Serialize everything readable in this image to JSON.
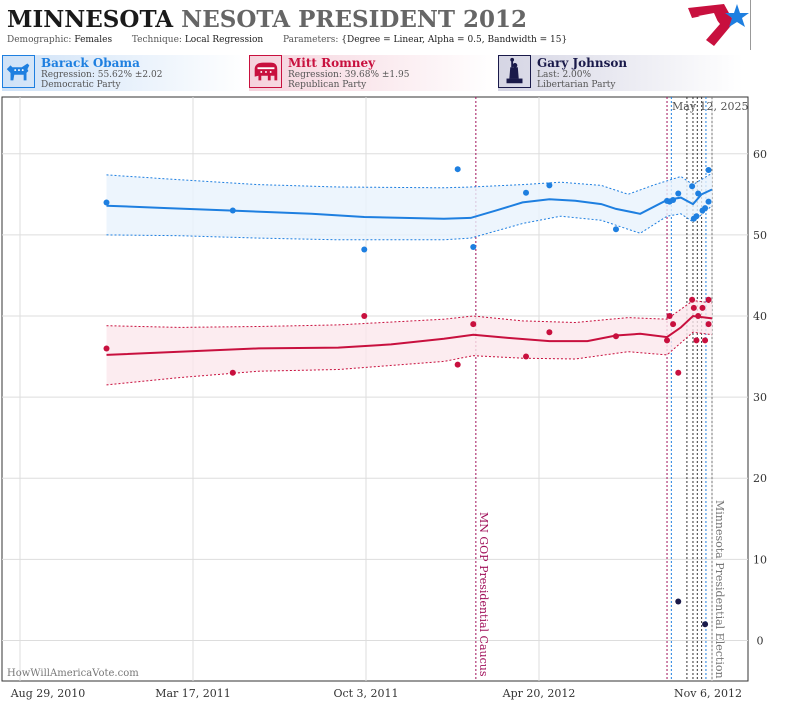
{
  "header": {
    "title_state": "MINNESOTA",
    "title_race": "NESOTA PRESIDENT 2012",
    "demographic_label": "Demographic:",
    "demographic_value": "Females",
    "technique_label": "Technique:",
    "technique_value": "Local Regression",
    "parameters_label": "Parameters:",
    "parameters_value": "{Degree = Linear, Alpha = 0.5, Bandwidth = 15}"
  },
  "candidates": [
    {
      "name": "Barack Obama",
      "stat": "Regression: 55.62% ±2.02",
      "party": "Democratic Party",
      "color": "#1e7fe0",
      "icon": "donkey-icon"
    },
    {
      "name": "Mitt Romney",
      "stat": "Regression: 39.68% ±1.95",
      "party": "Republican Party",
      "color": "#c8103e",
      "icon": "elephant-icon"
    },
    {
      "name": "Gary Johnson",
      "stat": "Last: 2.00%",
      "party": "Libertarian Party",
      "color": "#1a1a4a",
      "icon": "statue-of-liberty-icon"
    }
  ],
  "as_of_date": "May 12, 2025",
  "watermark": "HowWillAmericaVote.com",
  "chart_data": {
    "type": "line",
    "x_tick_labels": [
      "Aug 29, 2010",
      "Mar 17, 2011",
      "Oct 3, 2011",
      "Apr 20, 2012",
      "Nov 6, 2012"
    ],
    "x_tick_dates": [
      "2010-08-29",
      "2011-03-17",
      "2011-10-03",
      "2012-04-20",
      "2012-11-06"
    ],
    "xlim": [
      "2010-08-29",
      "2012-11-06"
    ],
    "ylim": [
      -5,
      67
    ],
    "y_ticks": [
      0,
      10,
      20,
      30,
      40,
      50,
      60
    ],
    "grid": true,
    "events": [
      {
        "date": "2012-02-07",
        "label": "MN GOP Presidential Caucus",
        "color": "#a0105a"
      },
      {
        "date": "2012-11-06",
        "label": "Minnesota Presidential Election",
        "color": "#777777"
      }
    ],
    "poll_markers": [
      {
        "date": "2012-09-15",
        "color": "#a0105a"
      },
      {
        "date": "2012-09-20",
        "color": "#1e7fe0"
      },
      {
        "date": "2012-10-08",
        "color": "#333333"
      },
      {
        "date": "2012-10-15",
        "color": "#333333"
      },
      {
        "date": "2012-10-20",
        "color": "#333333"
      },
      {
        "date": "2012-10-25",
        "color": "#333333"
      },
      {
        "date": "2012-10-30",
        "color": "#1e7fe0"
      }
    ],
    "series": [
      {
        "name": "Barack Obama",
        "color": "#1e7fe0",
        "points": [
          [
            "2010-12-07",
            54
          ],
          [
            "2011-05-02",
            53
          ],
          [
            "2011-10-01",
            48.2
          ],
          [
            "2012-01-17",
            58.1
          ],
          [
            "2012-02-04",
            48.5
          ],
          [
            "2012-04-05",
            55.2
          ],
          [
            "2012-05-02",
            56.1
          ],
          [
            "2012-07-18",
            50.7
          ],
          [
            "2012-09-15",
            54.2
          ],
          [
            "2012-09-18",
            54.1
          ],
          [
            "2012-09-22",
            54.3
          ],
          [
            "2012-09-28",
            55.1
          ],
          [
            "2012-10-14",
            56
          ],
          [
            "2012-10-16",
            52
          ],
          [
            "2012-10-19",
            52.3
          ],
          [
            "2012-10-21",
            55.1
          ],
          [
            "2012-10-26",
            53
          ],
          [
            "2012-10-29",
            53.3
          ],
          [
            "2012-11-02",
            54.1
          ],
          [
            "2012-11-02",
            58
          ]
        ],
        "trend": [
          [
            "2010-12-07",
            53.6
          ],
          [
            "2011-02-15",
            53.3
          ],
          [
            "2011-05-02",
            53.0
          ],
          [
            "2011-08-01",
            52.6
          ],
          [
            "2011-10-01",
            52.2
          ],
          [
            "2012-01-01",
            52.0
          ],
          [
            "2012-02-01",
            52.1
          ],
          [
            "2012-03-01",
            53.0
          ],
          [
            "2012-04-01",
            54.0
          ],
          [
            "2012-05-02",
            54.4
          ],
          [
            "2012-06-01",
            54.2
          ],
          [
            "2012-07-01",
            53.8
          ],
          [
            "2012-07-18",
            53.2
          ],
          [
            "2012-08-15",
            52.6
          ],
          [
            "2012-09-15",
            54.3
          ],
          [
            "2012-10-01",
            54.6
          ],
          [
            "2012-10-15",
            53.8
          ],
          [
            "2012-10-25",
            55.0
          ],
          [
            "2012-11-06",
            55.6
          ]
        ],
        "upper": [
          [
            "2010-12-07",
            57.4
          ],
          [
            "2011-03-01",
            56.8
          ],
          [
            "2011-06-01",
            56.2
          ],
          [
            "2011-09-01",
            55.9
          ],
          [
            "2012-01-01",
            55.8
          ],
          [
            "2012-02-01",
            55.9
          ],
          [
            "2012-04-01",
            56.2
          ],
          [
            "2012-05-15",
            56.5
          ],
          [
            "2012-07-01",
            56.1
          ],
          [
            "2012-08-01",
            55.0
          ],
          [
            "2012-09-01",
            56.2
          ],
          [
            "2012-10-01",
            57.2
          ],
          [
            "2012-10-15",
            56.2
          ],
          [
            "2012-11-06",
            57.6
          ]
        ],
        "lower": [
          [
            "2010-12-07",
            50.0
          ],
          [
            "2011-03-01",
            49.9
          ],
          [
            "2011-06-01",
            49.6
          ],
          [
            "2011-09-01",
            49.4
          ],
          [
            "2012-01-01",
            49.4
          ],
          [
            "2012-02-01",
            49.6
          ],
          [
            "2012-04-01",
            51.4
          ],
          [
            "2012-05-15",
            52.3
          ],
          [
            "2012-07-01",
            51.8
          ],
          [
            "2012-08-15",
            50.2
          ],
          [
            "2012-09-15",
            52.3
          ],
          [
            "2012-10-01",
            52.6
          ],
          [
            "2012-10-15",
            51.6
          ],
          [
            "2012-11-06",
            53.6
          ]
        ]
      },
      {
        "name": "Mitt Romney",
        "color": "#c8103e",
        "points": [
          [
            "2010-12-07",
            36
          ],
          [
            "2011-05-02",
            33
          ],
          [
            "2011-10-01",
            40
          ],
          [
            "2012-01-17",
            34
          ],
          [
            "2012-02-04",
            39
          ],
          [
            "2012-04-05",
            35
          ],
          [
            "2012-05-02",
            38
          ],
          [
            "2012-07-18",
            37.5
          ],
          [
            "2012-09-15",
            37
          ],
          [
            "2012-09-18",
            40
          ],
          [
            "2012-09-22",
            39
          ],
          [
            "2012-09-28",
            33
          ],
          [
            "2012-10-14",
            42
          ],
          [
            "2012-10-16",
            41
          ],
          [
            "2012-10-19",
            37
          ],
          [
            "2012-10-21",
            40
          ],
          [
            "2012-10-26",
            41
          ],
          [
            "2012-10-29",
            37
          ],
          [
            "2012-11-02",
            39
          ],
          [
            "2012-11-02",
            42
          ]
        ],
        "trend": [
          [
            "2010-12-07",
            35.2
          ],
          [
            "2011-03-01",
            35.6
          ],
          [
            "2011-06-01",
            36.0
          ],
          [
            "2011-09-01",
            36.1
          ],
          [
            "2011-11-01",
            36.5
          ],
          [
            "2012-01-01",
            37.2
          ],
          [
            "2012-02-04",
            37.7
          ],
          [
            "2012-03-15",
            37.3
          ],
          [
            "2012-05-02",
            36.9
          ],
          [
            "2012-06-15",
            36.9
          ],
          [
            "2012-07-18",
            37.6
          ],
          [
            "2012-08-15",
            37.8
          ],
          [
            "2012-09-15",
            37.4
          ],
          [
            "2012-10-01",
            38.6
          ],
          [
            "2012-10-15",
            40.0
          ],
          [
            "2012-11-06",
            39.7
          ]
        ],
        "upper": [
          [
            "2010-12-07",
            38.8
          ],
          [
            "2011-03-01",
            38.6
          ],
          [
            "2011-06-01",
            38.7
          ],
          [
            "2011-09-01",
            38.9
          ],
          [
            "2012-01-01",
            39.6
          ],
          [
            "2012-02-04",
            40.0
          ],
          [
            "2012-04-01",
            39.4
          ],
          [
            "2012-06-01",
            39.2
          ],
          [
            "2012-08-01",
            39.8
          ],
          [
            "2012-09-15",
            39.6
          ],
          [
            "2012-10-15",
            41.9
          ],
          [
            "2012-11-06",
            41.6
          ]
        ],
        "lower": [
          [
            "2010-12-07",
            31.5
          ],
          [
            "2011-03-01",
            32.4
          ],
          [
            "2011-06-01",
            33.2
          ],
          [
            "2011-09-01",
            33.4
          ],
          [
            "2012-01-01",
            34.4
          ],
          [
            "2012-02-04",
            35.1
          ],
          [
            "2012-04-01",
            34.8
          ],
          [
            "2012-06-01",
            34.7
          ],
          [
            "2012-08-01",
            35.6
          ],
          [
            "2012-09-15",
            35.2
          ],
          [
            "2012-10-15",
            38.0
          ],
          [
            "2012-11-06",
            37.7
          ]
        ]
      },
      {
        "name": "Gary Johnson",
        "color": "#1a1a4a",
        "points": [
          [
            "2012-09-28",
            4.8
          ],
          [
            "2012-10-29",
            2.0
          ]
        ]
      }
    ]
  }
}
